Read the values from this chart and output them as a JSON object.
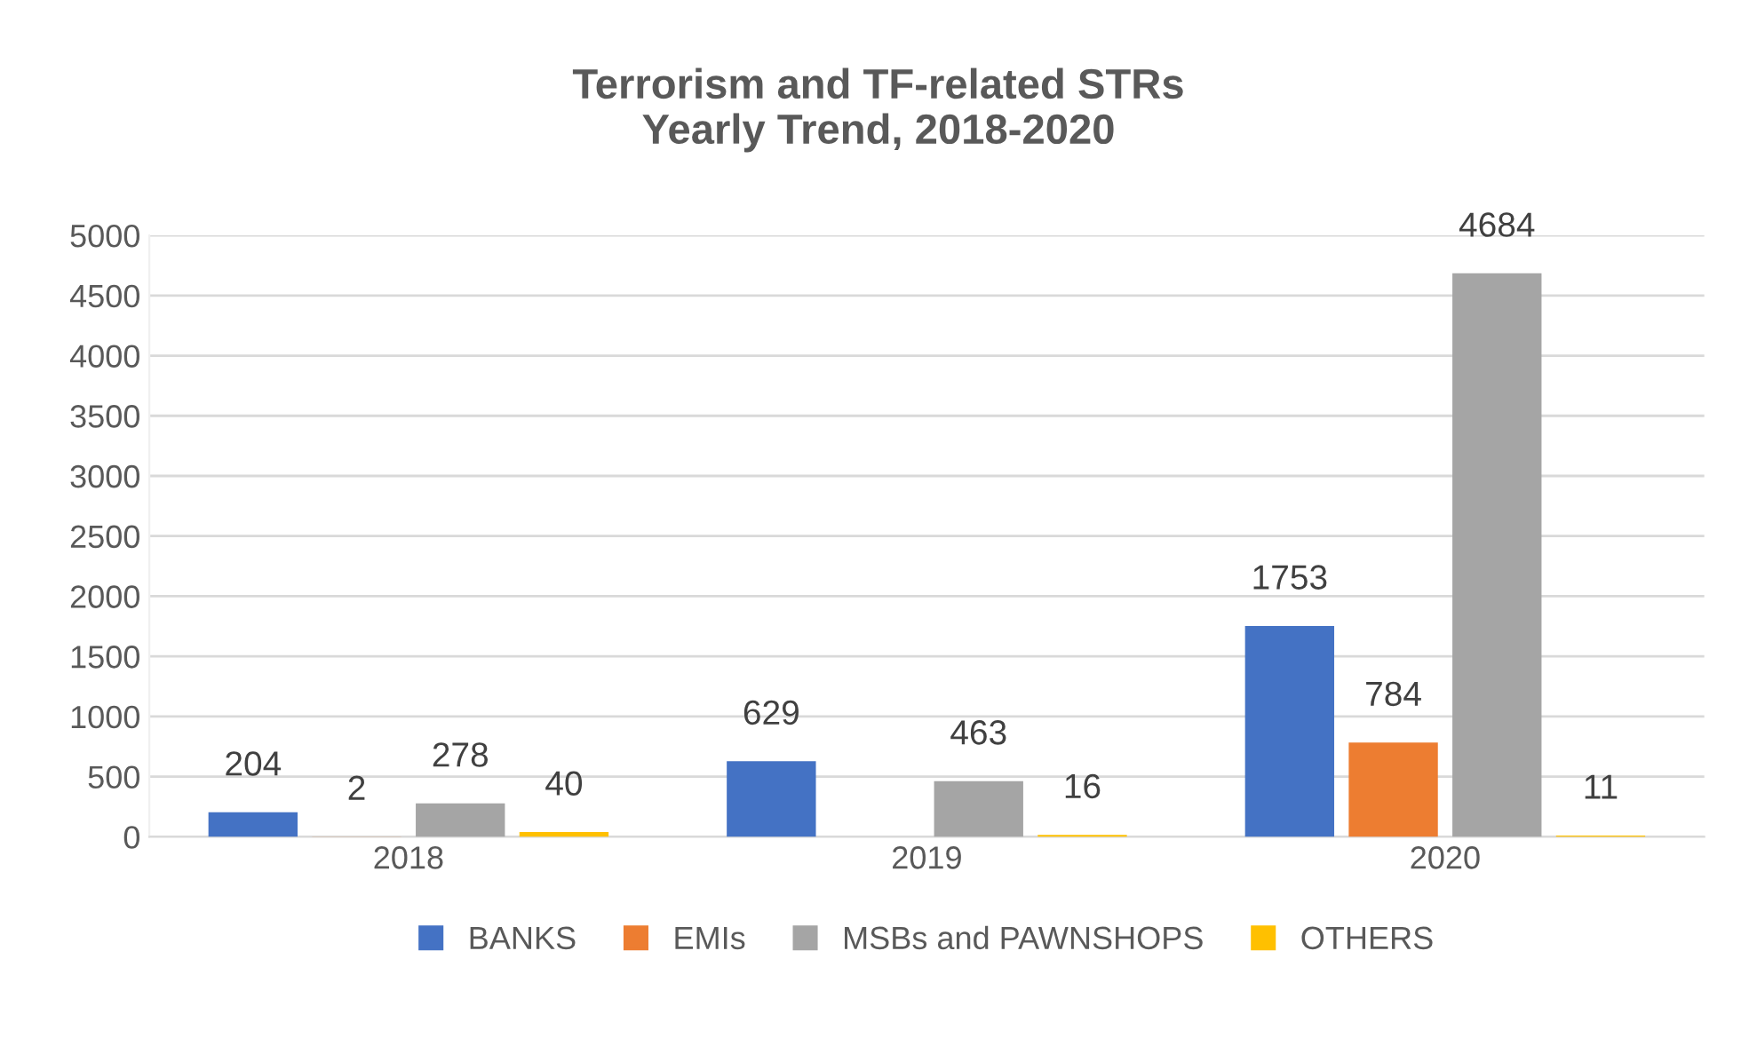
{
  "chart_data": {
    "type": "bar",
    "title": "Terrorism and TF-related STRs\nYearly Trend, 2018-2020",
    "categories": [
      "2018",
      "2019",
      "2020"
    ],
    "series": [
      {
        "name": "BANKS",
        "color": "#4472c4",
        "values": [
          204,
          629,
          1753
        ]
      },
      {
        "name": "EMIs",
        "color": "#ed7d31",
        "values": [
          2,
          null,
          784
        ]
      },
      {
        "name": "MSBs and PAWNSHOPS",
        "color": "#a5a5a5",
        "values": [
          278,
          463,
          4684
        ]
      },
      {
        "name": "OTHERS",
        "color": "#ffc000",
        "values": [
          40,
          16,
          11
        ]
      }
    ],
    "ylim": [
      0,
      5000
    ],
    "yticks": [
      0,
      500,
      1000,
      1500,
      2000,
      2500,
      3000,
      3500,
      4000,
      4500,
      5000
    ],
    "grid": "y",
    "legend": "bottom",
    "data_labels": true
  }
}
